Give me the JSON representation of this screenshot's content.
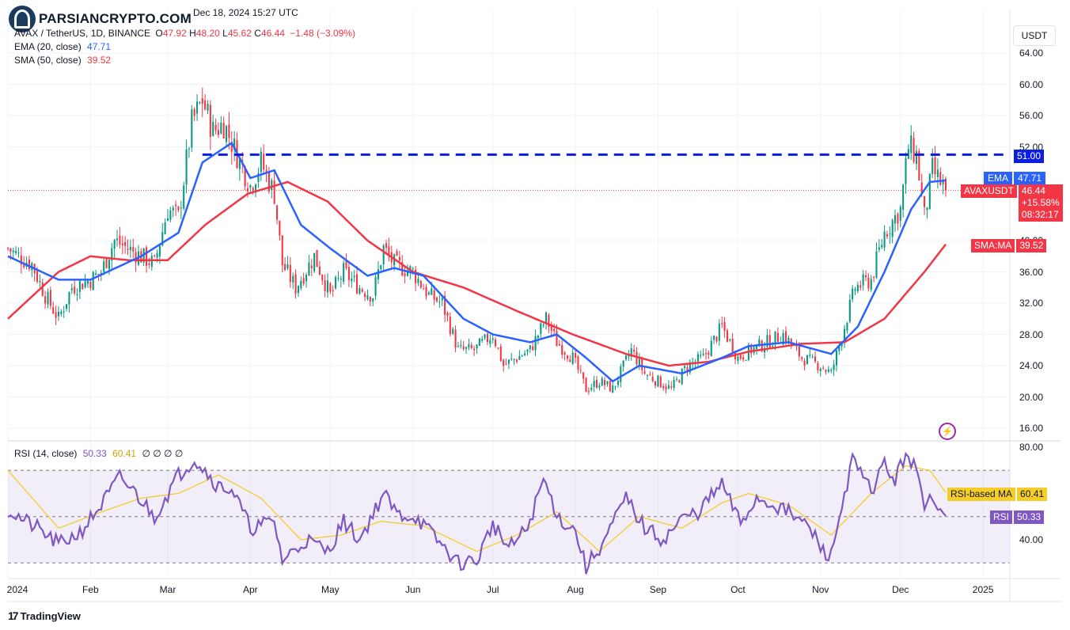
{
  "brand": {
    "watermark": "PARSIANCRYPTO.COM",
    "footer": "TradingView"
  },
  "header": {
    "published": "Dec 18, 2024 15:27 UTC",
    "symbol": "AVAX / TetherUS, 1D, BINANCE",
    "open_label": "O",
    "open": "47.92",
    "high_label": "H",
    "high": "48.20",
    "low_label": "L",
    "low": "45.62",
    "close_label": "C",
    "close": "46.44",
    "change": "−1.48 (−3.09%)"
  },
  "indicators": {
    "ema": {
      "label": "EMA (20, close)",
      "value": "47.71",
      "tag": "EMA",
      "color": "#2962ff"
    },
    "sma": {
      "label": "SMA (50, close)",
      "value": "39.52",
      "tag": "SMA:MA",
      "color": "#f23645"
    },
    "rsi": {
      "label": "RSI (14, close)",
      "value": "50.33",
      "ma_value": "60.41",
      "extra": "∅ ∅ ∅ ∅",
      "tag": "RSI",
      "ma_tag": "RSI-based MA",
      "color": "#7e57c2",
      "ma_color": "#f5cd2a"
    }
  },
  "price_axis": {
    "currency": "USDT",
    "labels": [
      "64.00",
      "60.00",
      "56.00",
      "52.00",
      "40.00",
      "36.00",
      "32.00",
      "28.00",
      "24.00",
      "20.00",
      "16.00"
    ],
    "label_values": [
      64,
      60,
      56,
      52,
      40,
      36,
      32,
      28,
      24,
      20,
      16
    ]
  },
  "rsi_axis": {
    "labels": [
      "80.00",
      "40.00"
    ],
    "label_values": [
      80,
      40
    ]
  },
  "resistance": {
    "value": 51.0,
    "label": "51.00",
    "color": "#0b1ee0"
  },
  "last_price": {
    "symbol": "AVAXUSDT",
    "price": "46.44",
    "change": "+15.58%",
    "countdown": "08:32:17",
    "color": "#f23645"
  },
  "time_axis": [
    "2024",
    "Feb",
    "Mar",
    "Apr",
    "May",
    "Jun",
    "Jul",
    "Aug",
    "Sep",
    "Oct",
    "Nov",
    "Dec",
    "2025"
  ],
  "chart_data": {
    "type": "candlestick",
    "interval": "1D",
    "y_range": [
      14,
      67
    ],
    "rsi_range": [
      23,
      83
    ],
    "rsi_bands": [
      70,
      30
    ],
    "x_start": "2024-01-01",
    "x_end": "2024-12-18",
    "anchors": [
      [
        "2024-01-01",
        39
      ],
      [
        "2024-01-05",
        38
      ],
      [
        "2024-01-10",
        37
      ],
      [
        "2024-01-15",
        33
      ],
      [
        "2024-01-20",
        30
      ],
      [
        "2024-01-25",
        34
      ],
      [
        "2024-02-01",
        35
      ],
      [
        "2024-02-05",
        36
      ],
      [
        "2024-02-10",
        40
      ],
      [
        "2024-02-15",
        39
      ],
      [
        "2024-02-20",
        38
      ],
      [
        "2024-02-25",
        37
      ],
      [
        "2024-03-01",
        44
      ],
      [
        "2024-03-05",
        43
      ],
      [
        "2024-03-10",
        55
      ],
      [
        "2024-03-14",
        58
      ],
      [
        "2024-03-18",
        54
      ],
      [
        "2024-03-22",
        55
      ],
      [
        "2024-03-27",
        51
      ],
      [
        "2024-04-01",
        47
      ],
      [
        "2024-04-05",
        50
      ],
      [
        "2024-04-10",
        46
      ],
      [
        "2024-04-13",
        37
      ],
      [
        "2024-04-18",
        34
      ],
      [
        "2024-04-25",
        38
      ],
      [
        "2024-05-01",
        33
      ],
      [
        "2024-05-06",
        36
      ],
      [
        "2024-05-12",
        34
      ],
      [
        "2024-05-17",
        33
      ],
      [
        "2024-05-21",
        39
      ],
      [
        "2024-05-25",
        37
      ],
      [
        "2024-06-01",
        36
      ],
      [
        "2024-06-07",
        33
      ],
      [
        "2024-06-12",
        32
      ],
      [
        "2024-06-18",
        26
      ],
      [
        "2024-06-24",
        26
      ],
      [
        "2024-07-01",
        28
      ],
      [
        "2024-07-05",
        24
      ],
      [
        "2024-07-10",
        25
      ],
      [
        "2024-07-15",
        26
      ],
      [
        "2024-07-21",
        30
      ],
      [
        "2024-07-25",
        27
      ],
      [
        "2024-07-31",
        25
      ],
      [
        "2024-08-05",
        21
      ],
      [
        "2024-08-10",
        22
      ],
      [
        "2024-08-15",
        21
      ],
      [
        "2024-08-22",
        26
      ],
      [
        "2024-08-27",
        23
      ],
      [
        "2024-09-01",
        22
      ],
      [
        "2024-09-06",
        21
      ],
      [
        "2024-09-12",
        24
      ],
      [
        "2024-09-18",
        25
      ],
      [
        "2024-09-25",
        29
      ],
      [
        "2024-10-01",
        25
      ],
      [
        "2024-10-06",
        26
      ],
      [
        "2024-10-12",
        27
      ],
      [
        "2024-10-18",
        28
      ],
      [
        "2024-10-25",
        25
      ],
      [
        "2024-11-01",
        24
      ],
      [
        "2024-11-05",
        23
      ],
      [
        "2024-11-10",
        29
      ],
      [
        "2024-11-14",
        34
      ],
      [
        "2024-11-20",
        35
      ],
      [
        "2024-11-25",
        41
      ],
      [
        "2024-12-01",
        44
      ],
      [
        "2024-12-04",
        52
      ],
      [
        "2024-12-07",
        51
      ],
      [
        "2024-12-10",
        43
      ],
      [
        "2024-12-13",
        49
      ],
      [
        "2024-12-18",
        46.44
      ]
    ],
    "ema20": [
      [
        "2024-01-01",
        38
      ],
      [
        "2024-01-20",
        35
      ],
      [
        "2024-02-01",
        35
      ],
      [
        "2024-02-20",
        38
      ],
      [
        "2024-03-05",
        41
      ],
      [
        "2024-03-14",
        50
      ],
      [
        "2024-03-25",
        52.5
      ],
      [
        "2024-04-01",
        48
      ],
      [
        "2024-04-10",
        49
      ],
      [
        "2024-04-20",
        42
      ],
      [
        "2024-05-01",
        39
      ],
      [
        "2024-05-15",
        35.5
      ],
      [
        "2024-05-25",
        36.5
      ],
      [
        "2024-06-05",
        35.5
      ],
      [
        "2024-06-20",
        30
      ],
      [
        "2024-07-01",
        28
      ],
      [
        "2024-07-15",
        27
      ],
      [
        "2024-07-25",
        28
      ],
      [
        "2024-08-05",
        25
      ],
      [
        "2024-08-15",
        22
      ],
      [
        "2024-08-25",
        24
      ],
      [
        "2024-09-10",
        23
      ],
      [
        "2024-09-25",
        25
      ],
      [
        "2024-10-05",
        26.5
      ],
      [
        "2024-10-20",
        27
      ],
      [
        "2024-11-05",
        25.5
      ],
      [
        "2024-11-15",
        29
      ],
      [
        "2024-11-25",
        36
      ],
      [
        "2024-12-05",
        44
      ],
      [
        "2024-12-12",
        47.5
      ],
      [
        "2024-12-18",
        47.71
      ]
    ],
    "sma50": [
      [
        "2024-01-01",
        30
      ],
      [
        "2024-01-20",
        36
      ],
      [
        "2024-02-01",
        38
      ],
      [
        "2024-02-15",
        37.5
      ],
      [
        "2024-03-01",
        37.5
      ],
      [
        "2024-03-15",
        42
      ],
      [
        "2024-03-31",
        46
      ],
      [
        "2024-04-15",
        47.5
      ],
      [
        "2024-04-30",
        45
      ],
      [
        "2024-05-15",
        40
      ],
      [
        "2024-06-01",
        36
      ],
      [
        "2024-06-20",
        34
      ],
      [
        "2024-07-10",
        31
      ],
      [
        "2024-07-31",
        28
      ],
      [
        "2024-08-20",
        25.5
      ],
      [
        "2024-09-05",
        24
      ],
      [
        "2024-09-20",
        24.5
      ],
      [
        "2024-10-05",
        25.8
      ],
      [
        "2024-10-25",
        26.8
      ],
      [
        "2024-11-10",
        27
      ],
      [
        "2024-11-25",
        30
      ],
      [
        "2024-12-10",
        36
      ],
      [
        "2024-12-18",
        39.52
      ]
    ],
    "rsi": [
      [
        "2024-01-01",
        53
      ],
      [
        "2024-01-06",
        49
      ],
      [
        "2024-01-12",
        45
      ],
      [
        "2024-01-20",
        38
      ],
      [
        "2024-01-28",
        43
      ],
      [
        "2024-02-05",
        55
      ],
      [
        "2024-02-12",
        67
      ],
      [
        "2024-02-18",
        60
      ],
      [
        "2024-02-25",
        50
      ],
      [
        "2024-03-05",
        68
      ],
      [
        "2024-03-11",
        75
      ],
      [
        "2024-03-15",
        70
      ],
      [
        "2024-03-20",
        63
      ],
      [
        "2024-03-25",
        62
      ],
      [
        "2024-04-01",
        45
      ],
      [
        "2024-04-10",
        48
      ],
      [
        "2024-04-13",
        31
      ],
      [
        "2024-04-22",
        40
      ],
      [
        "2024-04-30",
        35
      ],
      [
        "2024-05-06",
        48
      ],
      [
        "2024-05-12",
        40
      ],
      [
        "2024-05-21",
        60
      ],
      [
        "2024-05-26",
        51
      ],
      [
        "2024-06-02",
        50
      ],
      [
        "2024-06-10",
        40
      ],
      [
        "2024-06-18",
        30
      ],
      [
        "2024-06-25",
        31
      ],
      [
        "2024-07-01",
        47
      ],
      [
        "2024-07-07",
        36
      ],
      [
        "2024-07-14",
        45
      ],
      [
        "2024-07-20",
        66
      ],
      [
        "2024-07-26",
        49
      ],
      [
        "2024-08-01",
        44
      ],
      [
        "2024-08-05",
        28
      ],
      [
        "2024-08-12",
        40
      ],
      [
        "2024-08-20",
        58
      ],
      [
        "2024-08-27",
        45
      ],
      [
        "2024-09-03",
        40
      ],
      [
        "2024-09-10",
        49
      ],
      [
        "2024-09-16",
        52
      ],
      [
        "2024-09-25",
        64
      ],
      [
        "2024-10-02",
        47
      ],
      [
        "2024-10-08",
        58
      ],
      [
        "2024-10-15",
        55
      ],
      [
        "2024-10-21",
        51
      ],
      [
        "2024-10-28",
        45
      ],
      [
        "2024-11-02",
        35
      ],
      [
        "2024-11-05",
        33
      ],
      [
        "2024-11-10",
        60
      ],
      [
        "2024-11-13",
        74
      ],
      [
        "2024-11-20",
        61
      ],
      [
        "2024-11-25",
        73
      ],
      [
        "2024-11-29",
        65
      ],
      [
        "2024-12-03",
        78
      ],
      [
        "2024-12-07",
        70
      ],
      [
        "2024-12-10",
        52
      ],
      [
        "2024-12-13",
        60
      ],
      [
        "2024-12-18",
        50.33
      ]
    ],
    "rsi_ma": [
      [
        "2024-01-01",
        70
      ],
      [
        "2024-01-20",
        45
      ],
      [
        "2024-02-05",
        52
      ],
      [
        "2024-02-20",
        58
      ],
      [
        "2024-03-05",
        60
      ],
      [
        "2024-03-20",
        68
      ],
      [
        "2024-04-05",
        58
      ],
      [
        "2024-04-20",
        40
      ],
      [
        "2024-05-05",
        42
      ],
      [
        "2024-05-20",
        48
      ],
      [
        "2024-06-05",
        46
      ],
      [
        "2024-06-25",
        35
      ],
      [
        "2024-07-10",
        42
      ],
      [
        "2024-07-25",
        52
      ],
      [
        "2024-08-10",
        35
      ],
      [
        "2024-08-25",
        50
      ],
      [
        "2024-09-10",
        45
      ],
      [
        "2024-09-25",
        56
      ],
      [
        "2024-10-05",
        60
      ],
      [
        "2024-10-20",
        55
      ],
      [
        "2024-11-05",
        42
      ],
      [
        "2024-11-20",
        60
      ],
      [
        "2024-12-03",
        72
      ],
      [
        "2024-12-12",
        70
      ],
      [
        "2024-12-18",
        60.41
      ]
    ]
  }
}
